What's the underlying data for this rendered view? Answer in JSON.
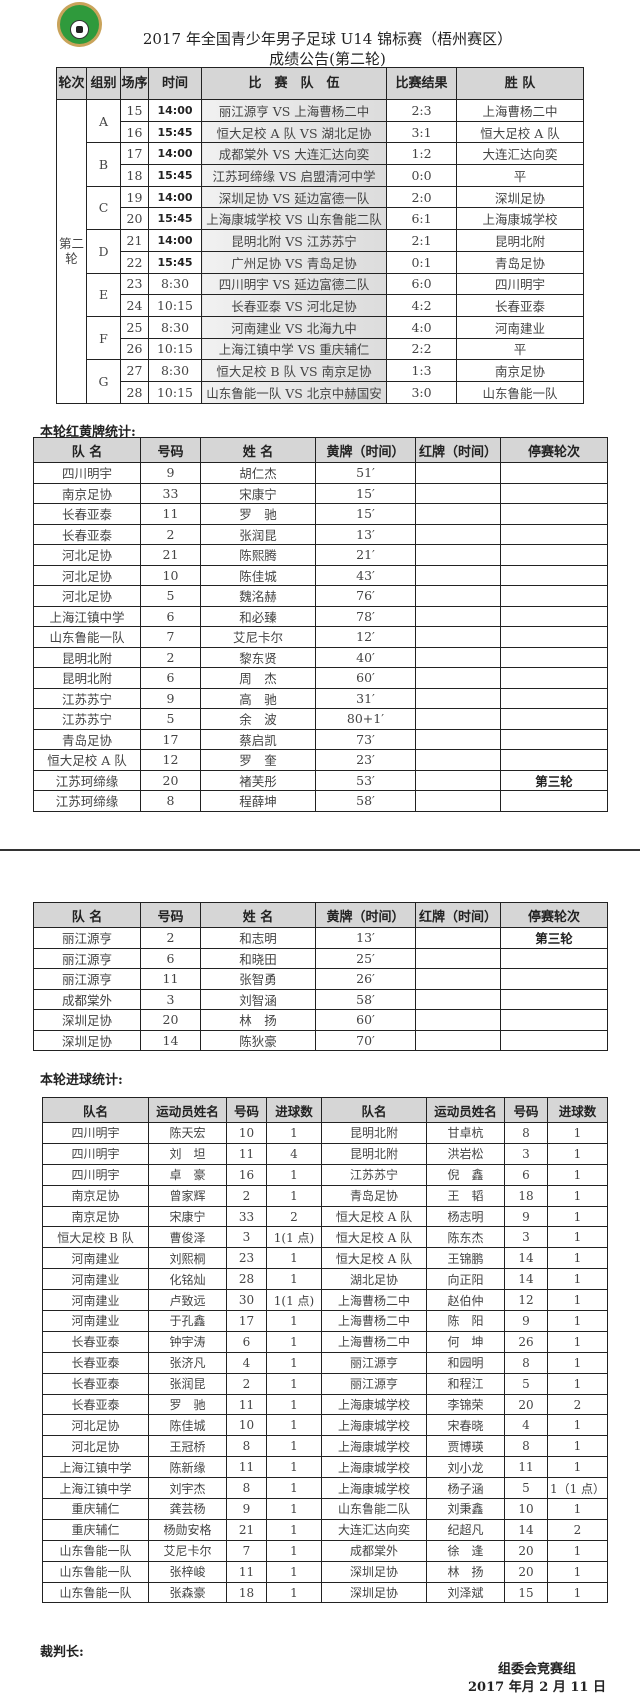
{
  "header": {
    "logo": "中国足球协会",
    "title": "2017 年全国青少年男子足球 U14 锦标赛（梧州赛区）",
    "subtitle": "成绩公告(第二轮)"
  },
  "matches": {
    "headers": [
      "轮次",
      "组别",
      "场序",
      "时间",
      "比　赛　队　伍",
      "比赛结果",
      "胜 队"
    ],
    "round": "第二轮",
    "rows": [
      {
        "group": "A",
        "no": "15",
        "time": "14:00",
        "teams": "丽江源亨 VS 上海曹杨二中",
        "score": "2:3",
        "winner": "上海曹杨二中"
      },
      {
        "group": "A",
        "no": "16",
        "time": "15:45",
        "teams": "恒大足校 A 队 VS 湖北足协",
        "score": "3:1",
        "winner": "恒大足校 A 队"
      },
      {
        "group": "B",
        "no": "17",
        "time": "14:00",
        "teams": "成都棠外 VS 大连汇达向奕",
        "score": "1:2",
        "winner": "大连汇达向奕"
      },
      {
        "group": "B",
        "no": "18",
        "time": "15:45",
        "teams": "江苏珂缔缘 VS 启盟清河中学",
        "score": "0:0",
        "winner": "平"
      },
      {
        "group": "C",
        "no": "19",
        "time": "14:00",
        "teams": "深圳足协 VS 延边富德一队",
        "score": "2:0",
        "winner": "深圳足协"
      },
      {
        "group": "C",
        "no": "20",
        "time": "15:45",
        "teams": "上海康城学校 VS 山东鲁能二队",
        "score": "6:1",
        "winner": "上海康城学校"
      },
      {
        "group": "D",
        "no": "21",
        "time": "14:00",
        "teams": "昆明北附 VS 江苏苏宁",
        "score": "2:1",
        "winner": "昆明北附"
      },
      {
        "group": "D",
        "no": "22",
        "time": "15:45",
        "teams": "广州足协 VS 青岛足协",
        "score": "0:1",
        "winner": "青岛足协"
      },
      {
        "group": "E",
        "no": "23",
        "time": "8:30",
        "teams": "四川明宇 VS 延边富德二队",
        "score": "6:0",
        "winner": "四川明宇"
      },
      {
        "group": "E",
        "no": "24",
        "time": "10:15",
        "teams": "长春亚泰 VS 河北足协",
        "score": "4:2",
        "winner": "长春亚泰"
      },
      {
        "group": "F",
        "no": "25",
        "time": "8:30",
        "teams": "河南建业 VS 北海九中",
        "score": "4:0",
        "winner": "河南建业"
      },
      {
        "group": "F",
        "no": "26",
        "time": "10:15",
        "teams": "上海江镇中学 VS 重庆辅仁",
        "score": "2:2",
        "winner": "平"
      },
      {
        "group": "G",
        "no": "27",
        "time": "8:30",
        "teams": "恒大足校 B 队 VS 南京足协",
        "score": "1:3",
        "winner": "南京足协"
      },
      {
        "group": "G",
        "no": "28",
        "time": "10:15",
        "teams": "山东鲁能一队 VS 北京中赫国安",
        "score": "3:0",
        "winner": "山东鲁能一队"
      }
    ]
  },
  "cards": {
    "section_label": "本轮红黄牌统计:",
    "headers": [
      "队 名",
      "号码",
      "姓 名",
      "黄牌（时间）",
      "红牌（时间）",
      "停赛轮次"
    ],
    "rows": [
      [
        "四川明宇",
        "9",
        "胡仁杰",
        "51′",
        "",
        ""
      ],
      [
        "南京足协",
        "33",
        "宋康宁",
        "15′",
        "",
        ""
      ],
      [
        "长春亚泰",
        "11",
        "罗　驰",
        "15′",
        "",
        ""
      ],
      [
        "长春亚泰",
        "2",
        "张润昆",
        "13′",
        "",
        ""
      ],
      [
        "河北足协",
        "21",
        "陈熙腾",
        "21′",
        "",
        ""
      ],
      [
        "河北足协",
        "10",
        "陈佳城",
        "43′",
        "",
        ""
      ],
      [
        "河北足协",
        "5",
        "魏洺赫",
        "76′",
        "",
        ""
      ],
      [
        "上海江镇中学",
        "6",
        "和必臻",
        "78′",
        "",
        ""
      ],
      [
        "山东鲁能一队",
        "7",
        "艾尼卡尔",
        "12′",
        "",
        ""
      ],
      [
        "昆明北附",
        "2",
        "黎东贤",
        "40′",
        "",
        ""
      ],
      [
        "昆明北附",
        "6",
        "周　杰",
        "60′",
        "",
        ""
      ],
      [
        "江苏苏宁",
        "9",
        "高　驰",
        "31′",
        "",
        ""
      ],
      [
        "江苏苏宁",
        "5",
        "余　波",
        "80+1′",
        "",
        ""
      ],
      [
        "青岛足协",
        "17",
        "蔡启凯",
        "73′",
        "",
        ""
      ],
      [
        "恒大足校 A 队",
        "12",
        "罗　奎",
        "23′",
        "",
        ""
      ],
      [
        "江苏珂缔缘",
        "20",
        "褚芙彤",
        "53′",
        "",
        "第三轮"
      ],
      [
        "江苏珂缔缘",
        "8",
        "程薛坤",
        "58′",
        "",
        ""
      ]
    ],
    "rows2": [
      [
        "丽江源亨",
        "2",
        "和志明",
        "13′",
        "",
        "第三轮"
      ],
      [
        "丽江源亨",
        "6",
        "和晓田",
        "25′",
        "",
        ""
      ],
      [
        "丽江源亨",
        "11",
        "张智勇",
        "26′",
        "",
        ""
      ],
      [
        "成都棠外",
        "3",
        "刘智涵",
        "58′",
        "",
        ""
      ],
      [
        "深圳足协",
        "20",
        "林　扬",
        "60′",
        "",
        ""
      ],
      [
        "深圳足协",
        "14",
        "陈狄豪",
        "70′",
        "",
        ""
      ]
    ]
  },
  "goals": {
    "section_label": "本轮进球统计:",
    "headers": [
      "队名",
      "运动员姓名",
      "号码",
      "进球数",
      "队名",
      "运动员姓名",
      "号码",
      "进球数"
    ],
    "rows": [
      [
        "四川明宇",
        "陈天宏",
        "10",
        "1",
        "昆明北附",
        "甘卓杭",
        "8",
        "1"
      ],
      [
        "四川明宇",
        "刘　坦",
        "11",
        "4",
        "昆明北附",
        "洪岩松",
        "3",
        "1"
      ],
      [
        "四川明宇",
        "卓　豪",
        "16",
        "1",
        "江苏苏宁",
        "倪　鑫",
        "6",
        "1"
      ],
      [
        "南京足协",
        "曾家辉",
        "2",
        "1",
        "青岛足协",
        "王　韬",
        "18",
        "1"
      ],
      [
        "南京足协",
        "宋康宁",
        "33",
        "2",
        "恒大足校 A 队",
        "杨志明",
        "9",
        "1"
      ],
      [
        "恒大足校 B 队",
        "曹俊泽",
        "3",
        "1(1 点)",
        "恒大足校 A 队",
        "陈东杰",
        "3",
        "1"
      ],
      [
        "河南建业",
        "刘熙桐",
        "23",
        "1",
        "恒大足校 A 队",
        "王锦鹏",
        "14",
        "1"
      ],
      [
        "河南建业",
        "化铭灿",
        "28",
        "1",
        "湖北足协",
        "向正阳",
        "14",
        "1"
      ],
      [
        "河南建业",
        "卢致远",
        "30",
        "1(1 点)",
        "上海曹杨二中",
        "赵伯仲",
        "12",
        "1"
      ],
      [
        "河南建业",
        "于孔鑫",
        "17",
        "1",
        "上海曹杨二中",
        "陈　阳",
        "9",
        "1"
      ],
      [
        "长春亚泰",
        "钟宇涛",
        "6",
        "1",
        "上海曹杨二中",
        "何　坤",
        "26",
        "1"
      ],
      [
        "长春亚泰",
        "张济凡",
        "4",
        "1",
        "丽江源亨",
        "和园明",
        "8",
        "1"
      ],
      [
        "长春亚泰",
        "张润昆",
        "2",
        "1",
        "丽江源亨",
        "和程江",
        "5",
        "1"
      ],
      [
        "长春亚泰",
        "罗　驰",
        "11",
        "1",
        "上海康城学校",
        "李锦荣",
        "20",
        "2"
      ],
      [
        "河北足协",
        "陈佳城",
        "10",
        "1",
        "上海康城学校",
        "宋春晓",
        "4",
        "1"
      ],
      [
        "河北足协",
        "王冠桥",
        "8",
        "1",
        "上海康城学校",
        "贾博瑛",
        "8",
        "1"
      ],
      [
        "上海江镇中学",
        "陈新缘",
        "11",
        "1",
        "上海康城学校",
        "刘小龙",
        "11",
        "1"
      ],
      [
        "上海江镇中学",
        "刘宇杰",
        "8",
        "1",
        "上海康城学校",
        "杨子涵",
        "5",
        "1（1 点）"
      ],
      [
        "重庆辅仁",
        "龚芸杨",
        "9",
        "1",
        "山东鲁能二队",
        "刘秉鑫",
        "10",
        "1"
      ],
      [
        "重庆辅仁",
        "杨勋安格",
        "21",
        "1",
        "大连汇达向奕",
        "纪超凡",
        "14",
        "2"
      ],
      [
        "山东鲁能一队",
        "艾尼卡尔",
        "7",
        "1",
        "成都棠外",
        "徐　逢",
        "20",
        "1"
      ],
      [
        "山东鲁能一队",
        "张梓峻",
        "11",
        "1",
        "深圳足协",
        "林　扬",
        "20",
        "1"
      ],
      [
        "山东鲁能一队",
        "张森豪",
        "18",
        "1",
        "深圳足协",
        "刘泽斌",
        "15",
        "1"
      ]
    ]
  },
  "footer": {
    "referee_label": "裁判长:",
    "org": "组委会竞赛组",
    "date": "2017 年月 2 月 11 日"
  }
}
